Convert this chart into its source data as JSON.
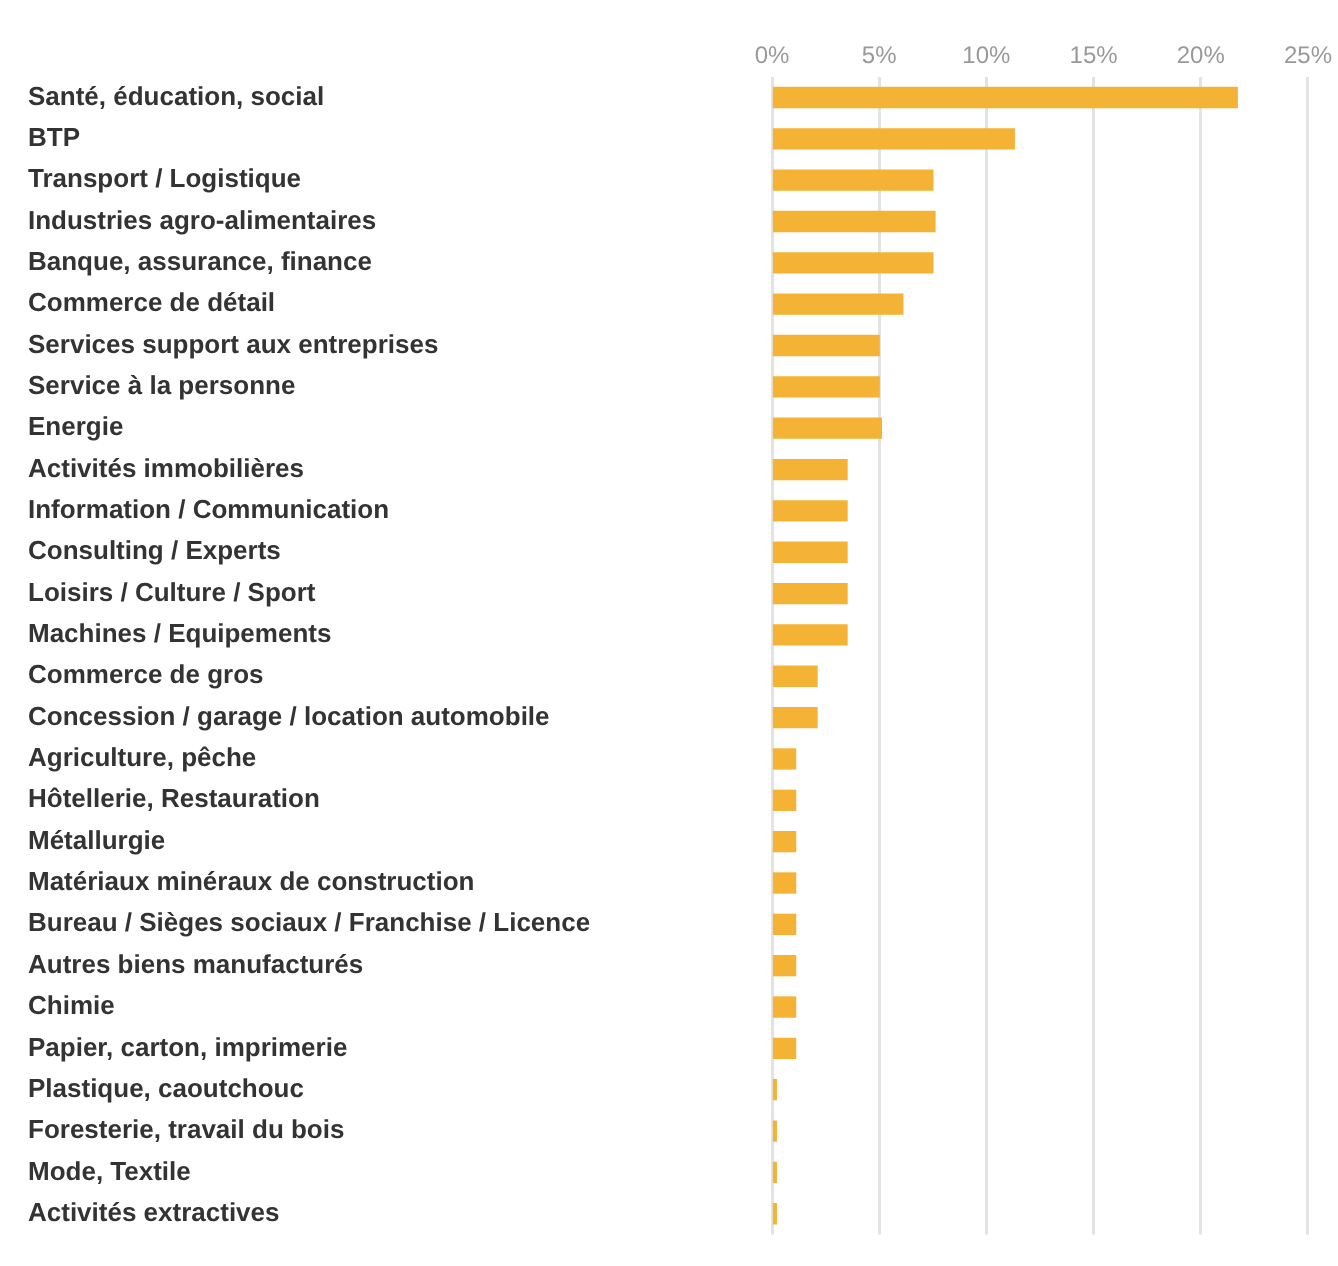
{
  "chart_data": {
    "type": "bar",
    "orientation": "horizontal",
    "color": "#f5b335",
    "grid": "x",
    "categories": [
      "Santé, éducation, social",
      "BTP",
      "Transport / Logistique",
      "Industries agro-alimentaires",
      "Banque, assurance, finance",
      "Commerce de détail",
      "Services support aux entreprises",
      "Service à la personne",
      "Energie",
      "Activités immobilières",
      "Information / Communication",
      "Consulting / Experts",
      "Loisirs / Culture / Sport",
      "Machines / Equipements",
      "Commerce de gros",
      "Concession / garage / location automobile",
      "Agriculture, pêche",
      "Hôtellerie, Restauration",
      "Métallurgie",
      "Matériaux minéraux de construction",
      "Bureau / Sièges sociaux / Franchise / Licence",
      "Autres biens manufacturés",
      "Chimie",
      "Papier, carton, imprimerie",
      "Plastique, caoutchouc",
      "Foresterie, travail du bois",
      "Mode, Textile",
      "Activités extractives"
    ],
    "values": [
      21.7,
      11.3,
      7.5,
      7.6,
      7.5,
      6.1,
      5.0,
      5.0,
      5.1,
      3.5,
      3.5,
      3.5,
      3.5,
      3.5,
      2.1,
      2.1,
      1.1,
      1.1,
      1.1,
      1.1,
      1.1,
      1.1,
      1.1,
      1.1,
      0.2,
      0.2,
      0.2,
      0.2
    ],
    "xlim": [
      0,
      25
    ],
    "xticks": [
      {
        "value": 0,
        "label": "0%"
      },
      {
        "value": 5,
        "label": "5%"
      },
      {
        "value": 10,
        "label": "10%"
      },
      {
        "value": 15,
        "label": "15%"
      },
      {
        "value": 20,
        "label": "20%"
      },
      {
        "value": 25,
        "label": "25%"
      }
    ]
  }
}
